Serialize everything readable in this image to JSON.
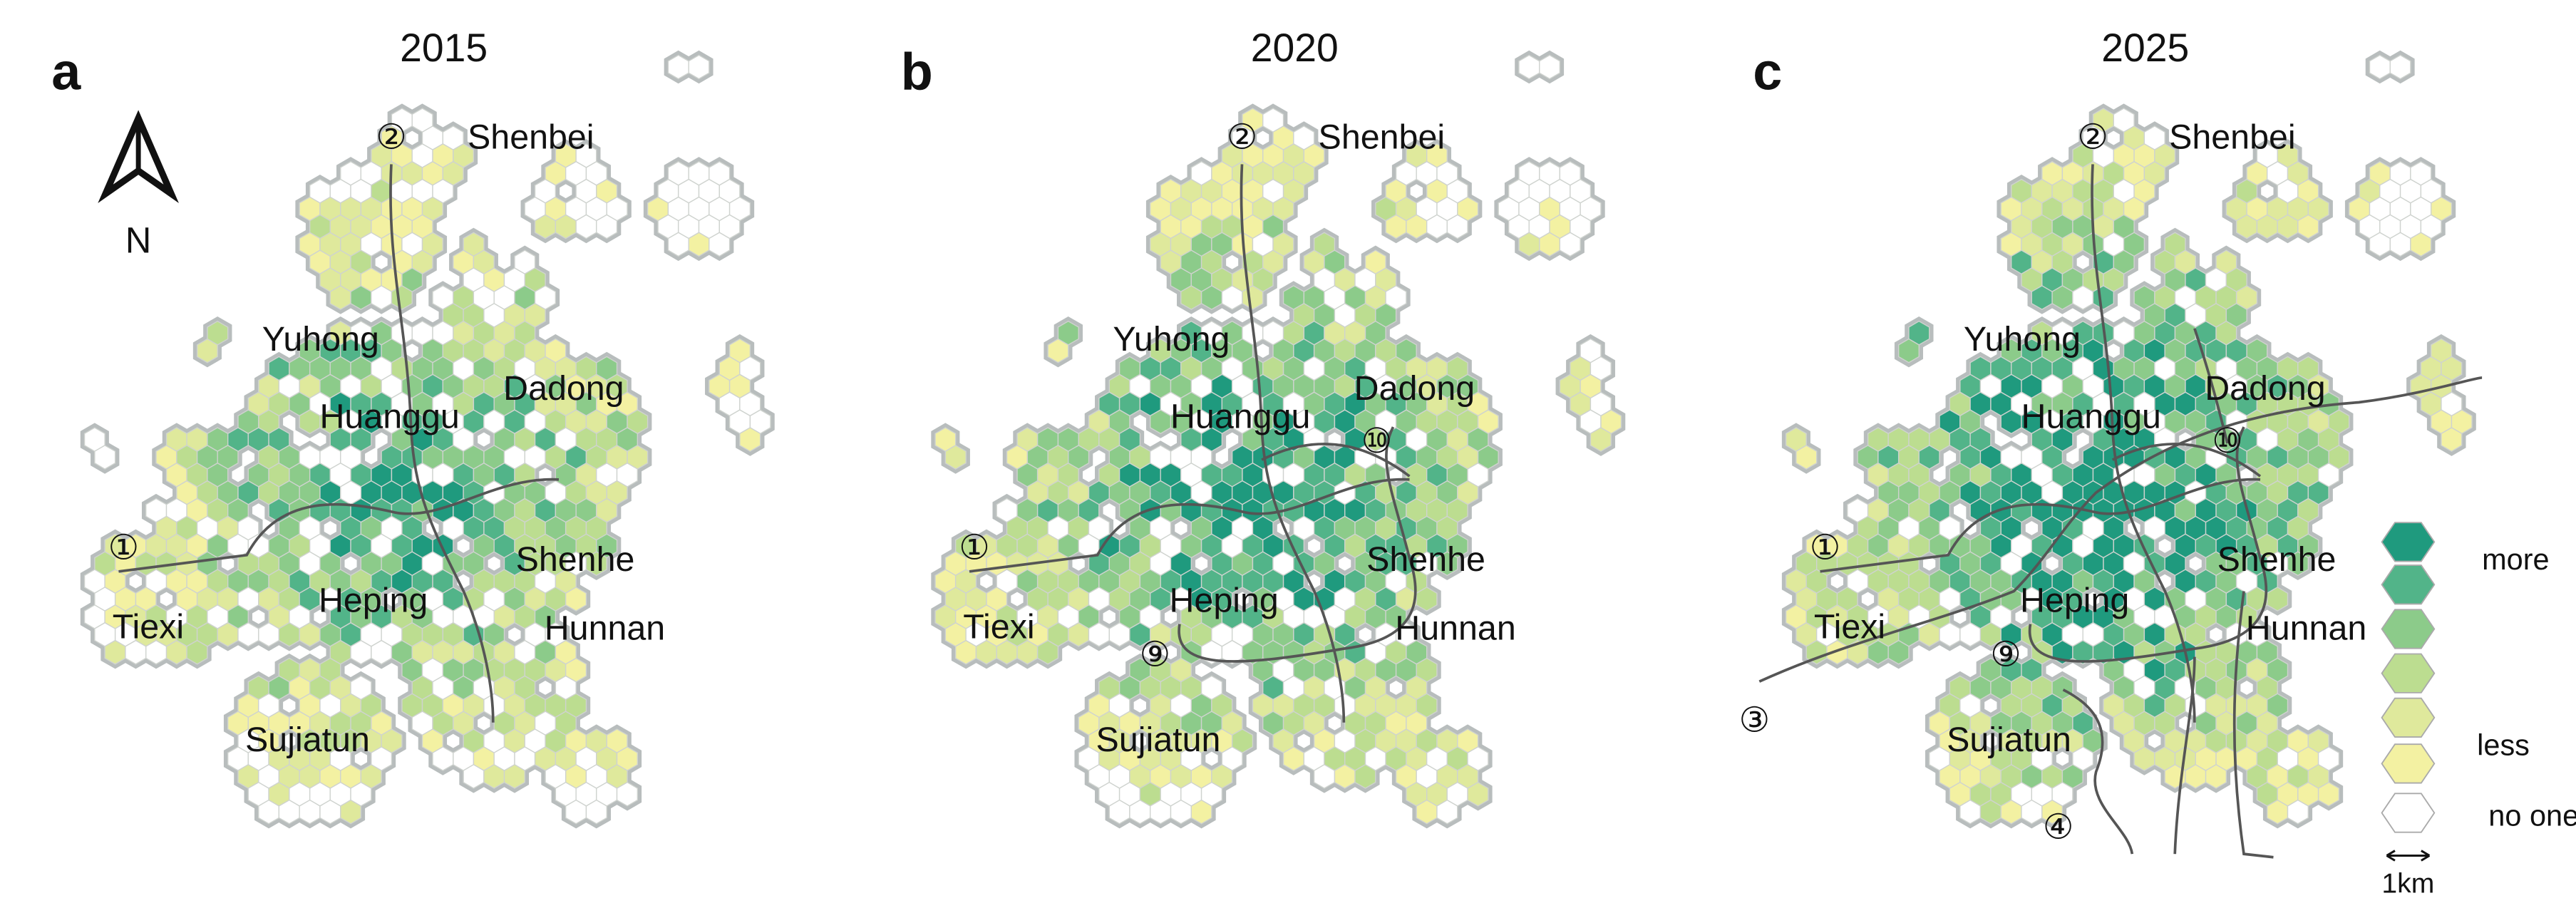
{
  "panels": [
    {
      "letter": "a",
      "year": "2015",
      "labels": [
        "②",
        "Shenbei",
        "Yuhong",
        "Huanggu",
        "Dadong",
        "①",
        "Tiexi",
        "Heping",
        "Shenhe",
        "Hunnan",
        "Sujiatun"
      ]
    },
    {
      "letter": "b",
      "year": "2020",
      "labels": [
        "②",
        "Shenbei",
        "Yuhong",
        "Huanggu",
        "Dadong",
        "①",
        "Tiexi",
        "Heping",
        "Shenhe",
        "Hunnan",
        "Sujiatun",
        "⑩",
        "⑨"
      ]
    },
    {
      "letter": "c",
      "year": "2025",
      "labels": [
        "②",
        "Shenbei",
        "Yuhong",
        "Huanggu",
        "Dadong",
        "①",
        "Tiexi",
        "Heping",
        "Shenhe",
        "Hunnan",
        "Sujiatun",
        "⑩",
        "⑨",
        "③",
        "④"
      ]
    }
  ],
  "compass": "N",
  "legend": {
    "labels": [
      "more",
      "less",
      "no one"
    ],
    "scale": "1km"
  }
}
